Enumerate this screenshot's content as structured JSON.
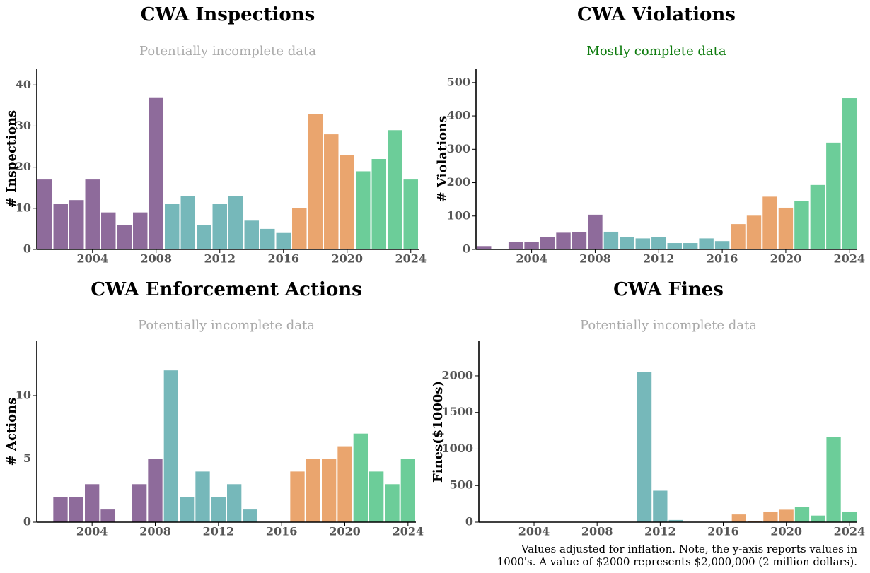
{
  "chart_data": [
    {
      "type": "bar",
      "title": "CWA Inspections",
      "subtitle": "Potentially incomplete data",
      "subtitle_color": "#aaaaaa",
      "ylabel": "# Inspections",
      "x": [
        2001,
        2002,
        2003,
        2004,
        2005,
        2006,
        2007,
        2008,
        2009,
        2010,
        2011,
        2012,
        2013,
        2014,
        2015,
        2016,
        2017,
        2018,
        2019,
        2020,
        2021,
        2022,
        2023,
        2024
      ],
      "values": [
        17,
        11,
        12,
        17,
        9,
        6,
        9,
        37,
        11,
        13,
        6,
        11,
        13,
        7,
        5,
        4,
        10,
        33,
        28,
        23,
        19,
        22,
        29,
        17
      ],
      "colors": [
        "#8e6b9b",
        "#8e6b9b",
        "#8e6b9b",
        "#8e6b9b",
        "#8e6b9b",
        "#8e6b9b",
        "#8e6b9b",
        "#8e6b9b",
        "#76b8ba",
        "#76b8ba",
        "#76b8ba",
        "#76b8ba",
        "#76b8ba",
        "#76b8ba",
        "#76b8ba",
        "#76b8ba",
        "#eaa56e",
        "#eaa56e",
        "#eaa56e",
        "#eaa56e",
        "#6ccd99",
        "#6ccd99",
        "#6ccd99",
        "#6ccd99"
      ],
      "xlim": [
        2000.5,
        2024.5
      ],
      "xticks": [
        2004,
        2008,
        2012,
        2016,
        2020,
        2024
      ],
      "ylim": [
        0,
        44
      ],
      "yticks": [
        0,
        10,
        20,
        30,
        40
      ]
    },
    {
      "type": "bar",
      "title": "CWA Violations",
      "subtitle": "Mostly complete data",
      "subtitle_color": "#0b7a0b",
      "ylabel": "# Violations",
      "x": [
        2001,
        2002,
        2003,
        2004,
        2005,
        2006,
        2007,
        2008,
        2009,
        2010,
        2011,
        2012,
        2013,
        2014,
        2015,
        2016,
        2017,
        2018,
        2019,
        2020,
        2021,
        2022,
        2023,
        2024
      ],
      "values": [
        10,
        0,
        22,
        22,
        36,
        50,
        52,
        104,
        53,
        36,
        33,
        38,
        19,
        19,
        33,
        25,
        76,
        101,
        158,
        125,
        145,
        193,
        320,
        453
      ],
      "colors": [
        "#8e6b9b",
        "#8e6b9b",
        "#8e6b9b",
        "#8e6b9b",
        "#8e6b9b",
        "#8e6b9b",
        "#8e6b9b",
        "#8e6b9b",
        "#76b8ba",
        "#76b8ba",
        "#76b8ba",
        "#76b8ba",
        "#76b8ba",
        "#76b8ba",
        "#76b8ba",
        "#76b8ba",
        "#eaa56e",
        "#eaa56e",
        "#eaa56e",
        "#eaa56e",
        "#6ccd99",
        "#6ccd99",
        "#6ccd99",
        "#6ccd99"
      ],
      "xlim": [
        2000.5,
        2024.5
      ],
      "xticks": [
        2004,
        2008,
        2012,
        2016,
        2020,
        2024
      ],
      "ylim": [
        0,
        542
      ],
      "yticks": [
        0,
        100,
        200,
        300,
        400,
        500
      ]
    },
    {
      "type": "bar",
      "title": "CWA Enforcement Actions",
      "subtitle": "Potentially incomplete data",
      "subtitle_color": "#aaaaaa",
      "ylabel": "# Actions",
      "x": [
        2001,
        2002,
        2003,
        2004,
        2005,
        2006,
        2007,
        2008,
        2009,
        2010,
        2011,
        2012,
        2013,
        2014,
        2015,
        2016,
        2017,
        2018,
        2019,
        2020,
        2021,
        2022,
        2023,
        2024
      ],
      "values": [
        0,
        2,
        2,
        3,
        1,
        0,
        3,
        5,
        12,
        2,
        4,
        2,
        3,
        1,
        0,
        0,
        4,
        5,
        5,
        6,
        7,
        4,
        3,
        5
      ],
      "colors": [
        "#8e6b9b",
        "#8e6b9b",
        "#8e6b9b",
        "#8e6b9b",
        "#8e6b9b",
        "#8e6b9b",
        "#8e6b9b",
        "#8e6b9b",
        "#76b8ba",
        "#76b8ba",
        "#76b8ba",
        "#76b8ba",
        "#76b8ba",
        "#76b8ba",
        "#76b8ba",
        "#76b8ba",
        "#eaa56e",
        "#eaa56e",
        "#eaa56e",
        "#eaa56e",
        "#6ccd99",
        "#6ccd99",
        "#6ccd99",
        "#6ccd99"
      ],
      "xlim": [
        2000.5,
        2024.5
      ],
      "xticks": [
        2004,
        2008,
        2012,
        2016,
        2020,
        2024
      ],
      "ylim": [
        0,
        14.3
      ],
      "yticks": [
        0,
        5,
        10
      ]
    },
    {
      "type": "bar",
      "title": "CWA Fines",
      "subtitle": "Potentially incomplete data",
      "subtitle_color": "#aaaaaa",
      "ylabel": "Fines($1000s)",
      "x": [
        2001,
        2002,
        2003,
        2004,
        2005,
        2006,
        2007,
        2008,
        2009,
        2010,
        2011,
        2012,
        2013,
        2014,
        2015,
        2016,
        2017,
        2018,
        2019,
        2020,
        2021,
        2022,
        2023,
        2024
      ],
      "values": [
        0,
        0,
        0,
        0,
        0,
        0,
        0,
        0,
        0,
        0,
        2050,
        430,
        30,
        0,
        0,
        0,
        105,
        15,
        145,
        170,
        210,
        90,
        1165,
        145
      ],
      "colors": [
        "#8e6b9b",
        "#8e6b9b",
        "#8e6b9b",
        "#8e6b9b",
        "#8e6b9b",
        "#8e6b9b",
        "#8e6b9b",
        "#8e6b9b",
        "#76b8ba",
        "#76b8ba",
        "#76b8ba",
        "#76b8ba",
        "#76b8ba",
        "#76b8ba",
        "#76b8ba",
        "#76b8ba",
        "#eaa56e",
        "#eaa56e",
        "#eaa56e",
        "#eaa56e",
        "#6ccd99",
        "#6ccd99",
        "#6ccd99",
        "#6ccd99"
      ],
      "xlim": [
        2000.5,
        2024.5
      ],
      "xticks": [
        2004,
        2008,
        2012,
        2016,
        2020,
        2024
      ],
      "ylim": [
        0,
        2473
      ],
      "yticks": [
        0,
        500,
        1000,
        1500,
        2000
      ],
      "note_lines": [
        "Values adjusted for inflation. Note, the y-axis reports values in",
        "1000's. A value of $2000 represents $2,000,000 (2 million dollars)."
      ]
    }
  ]
}
